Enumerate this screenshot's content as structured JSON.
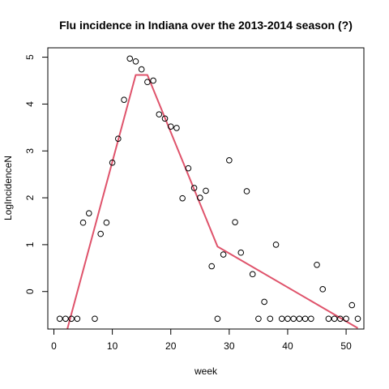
{
  "chart_data": {
    "type": "scatter",
    "title": "Flu incidence in Indiana over the 2013-2014 season (?)",
    "xlabel": "week",
    "ylabel": "LogIncidenceN",
    "xlim": [
      -1.04,
      53.04
    ],
    "ylim": [
      -0.8,
      5.2
    ],
    "xticks": [
      0,
      10,
      20,
      30,
      40,
      50
    ],
    "yticks": [
      0,
      1,
      2,
      3,
      4,
      5
    ],
    "grid": false,
    "legend": "none",
    "series": [
      {
        "kind": "points",
        "marker": "open-circle",
        "color": "#000000",
        "x": [
          1,
          2,
          3,
          4,
          5,
          6,
          7,
          8,
          9,
          10,
          11,
          12,
          13,
          14,
          15,
          16,
          17,
          18,
          19,
          20,
          21,
          22,
          23,
          24,
          25,
          26,
          27,
          28,
          29,
          30,
          31,
          32,
          33,
          34,
          35,
          36,
          37,
          38,
          39,
          40,
          41,
          42,
          43,
          44,
          45,
          46,
          47,
          48,
          49,
          50,
          51,
          52
        ],
        "y": [
          -0.58,
          -0.58,
          -0.58,
          -0.58,
          1.47,
          1.67,
          -0.58,
          1.23,
          1.47,
          2.75,
          3.26,
          4.09,
          4.97,
          4.91,
          4.74,
          4.47,
          4.5,
          3.78,
          3.69,
          3.52,
          3.49,
          1.99,
          2.63,
          2.21,
          2.0,
          2.15,
          0.54,
          -0.58,
          0.79,
          2.8,
          1.48,
          0.83,
          2.14,
          0.37,
          -0.58,
          -0.22,
          -0.58,
          1.0,
          -0.58,
          -0.58,
          -0.58,
          -0.58,
          -0.58,
          -0.58,
          0.57,
          0.05,
          -0.58,
          -0.58,
          -0.58,
          -0.58,
          -0.29,
          -0.58
        ]
      },
      {
        "kind": "line",
        "color": "#DF536B",
        "x": [
          2.3,
          14,
          16,
          28,
          52
        ],
        "y": [
          -0.8,
          4.62,
          4.62,
          0.96,
          -0.78
        ]
      }
    ]
  }
}
